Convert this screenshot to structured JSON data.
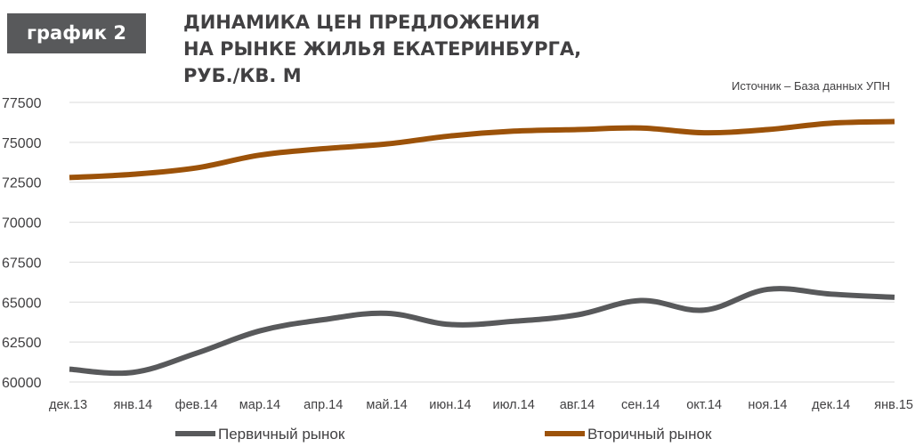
{
  "badge": {
    "label": "график 2"
  },
  "title": {
    "line1": "ДИНАМИКА ЦЕН ПРЕДЛОЖЕНИЯ",
    "line2": "НА РЫНКЕ ЖИЛЬЯ ЕКАТЕРИНБУРГА,",
    "line3": "РУБ./КВ. М"
  },
  "source": "Источник – База данных УПН",
  "colors": {
    "primary": "#58595b",
    "secondary": "#9c5209",
    "grid": "#d9d9d9",
    "text": "#414042"
  },
  "chart_data": {
    "type": "line",
    "categories": [
      "дек.13",
      "янв.14",
      "фев.14",
      "мар.14",
      "апр.14",
      "май.14",
      "июн.14",
      "июл.14",
      "авг.14",
      "сен.14",
      "окт.14",
      "ноя.14",
      "дек.14",
      "янв.15"
    ],
    "series": [
      {
        "name": "Первичный рынок",
        "color": "#58595b",
        "values": [
          60800,
          60600,
          61800,
          63200,
          63900,
          64300,
          63600,
          63800,
          64200,
          65100,
          64500,
          65800,
          65500,
          65300
        ]
      },
      {
        "name": "Вторичный рынок",
        "color": "#9c5209",
        "values": [
          72800,
          73000,
          73400,
          74200,
          74600,
          74900,
          75400,
          75700,
          75800,
          75900,
          75600,
          75800,
          76200,
          76300
        ]
      }
    ],
    "yticks": [
      "60000",
      "62500",
      "65000",
      "67500",
      "70000",
      "72500",
      "75000",
      "77500"
    ],
    "ylim": [
      60000,
      77500
    ],
    "grid": true,
    "legend_position": "bottom",
    "smooth": true
  }
}
